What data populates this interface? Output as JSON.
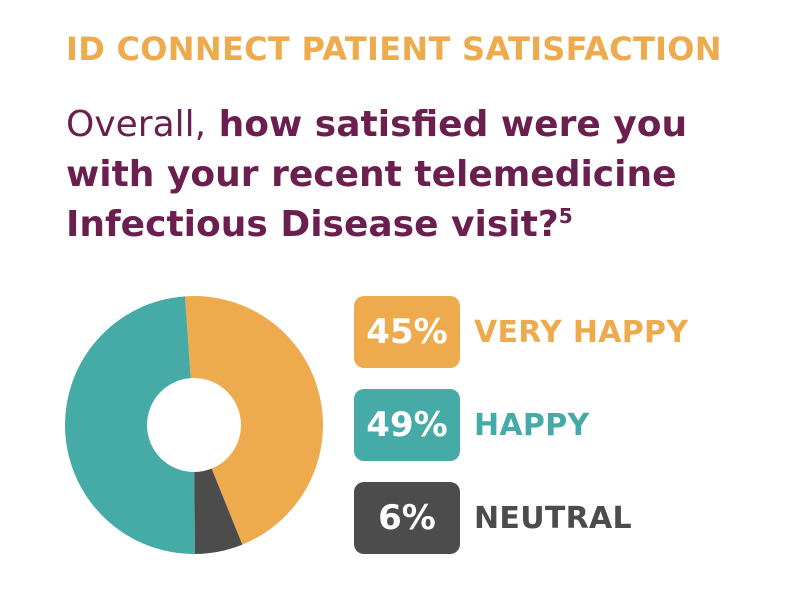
{
  "header": {
    "kicker": "ID CONNECT PATIENT SATISFACTION",
    "question_lead": "Overall,",
    "question_rest": " how satisfied were you with your recent telemedicine Infectious Disease visit?",
    "footnote_ref": "5"
  },
  "colors": {
    "kicker": "#EDAB4E",
    "question": "#6A1F4E",
    "very_happy": "#EDAB4E",
    "happy": "#46ABA6",
    "neutral": "#4C4C4C"
  },
  "chart_data": {
    "type": "pie",
    "variant": "donut",
    "title": "",
    "categories": [
      "VERY HAPPY",
      "HAPPY",
      "NEUTRAL"
    ],
    "values": [
      45,
      49,
      6
    ],
    "labels": [
      "45%",
      "49%",
      "6%"
    ],
    "colors": [
      "#EDAB4E",
      "#46ABA6",
      "#4C4C4C"
    ],
    "legend_position": "right"
  }
}
